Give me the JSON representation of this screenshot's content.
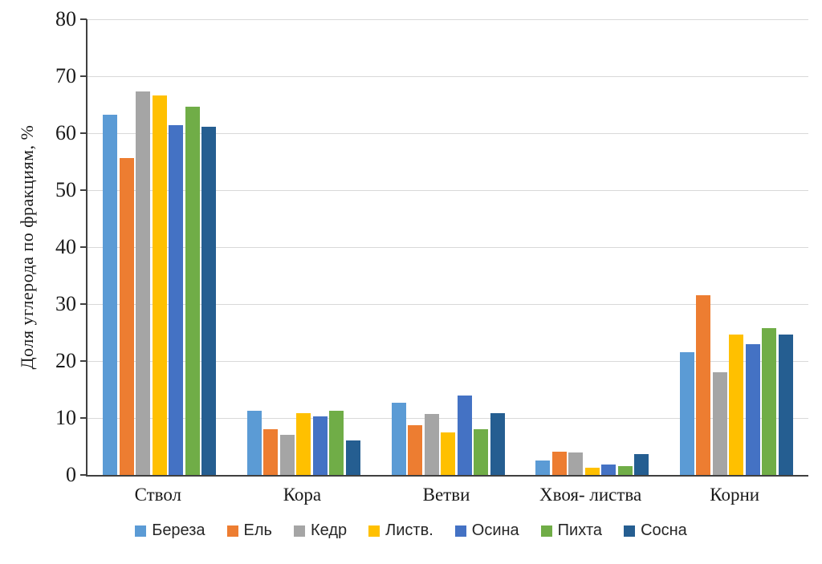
{
  "chart_data": {
    "type": "bar",
    "title": "",
    "xlabel": "",
    "ylabel": "Доля углерода по фракциям, %",
    "ylim": [
      0,
      80
    ],
    "yticks": [
      0,
      10,
      20,
      30,
      40,
      50,
      60,
      70,
      80
    ],
    "grid": true,
    "legend_position": "bottom",
    "axis_color": "#404040",
    "grid_color": "#D9D9D9",
    "categories": [
      "Ствол",
      "Кора",
      "Ветви",
      "Хвоя- листва",
      "Корни"
    ],
    "series": [
      {
        "name": "Береза",
        "color": "#5B9BD5",
        "values": [
          63.2,
          11.2,
          12.7,
          2.5,
          21.6
        ]
      },
      {
        "name": "Ель",
        "color": "#ED7D31",
        "values": [
          55.7,
          8.1,
          8.7,
          4.1,
          31.6
        ]
      },
      {
        "name": "Кедр",
        "color": "#A5A5A5",
        "values": [
          67.3,
          7.1,
          10.7,
          3.9,
          18.0
        ]
      },
      {
        "name": "Листв.",
        "color": "#FFC000",
        "values": [
          66.6,
          10.9,
          7.4,
          1.3,
          24.7
        ]
      },
      {
        "name": "Осина",
        "color": "#4472C4",
        "values": [
          61.4,
          10.3,
          13.9,
          1.8,
          22.9
        ]
      },
      {
        "name": "Пихта",
        "color": "#70AD47",
        "values": [
          64.7,
          11.2,
          8.1,
          1.5,
          25.8
        ]
      },
      {
        "name": "Сосна",
        "color": "#255E91",
        "values": [
          61.1,
          6.0,
          10.9,
          3.6,
          24.6
        ]
      }
    ]
  }
}
